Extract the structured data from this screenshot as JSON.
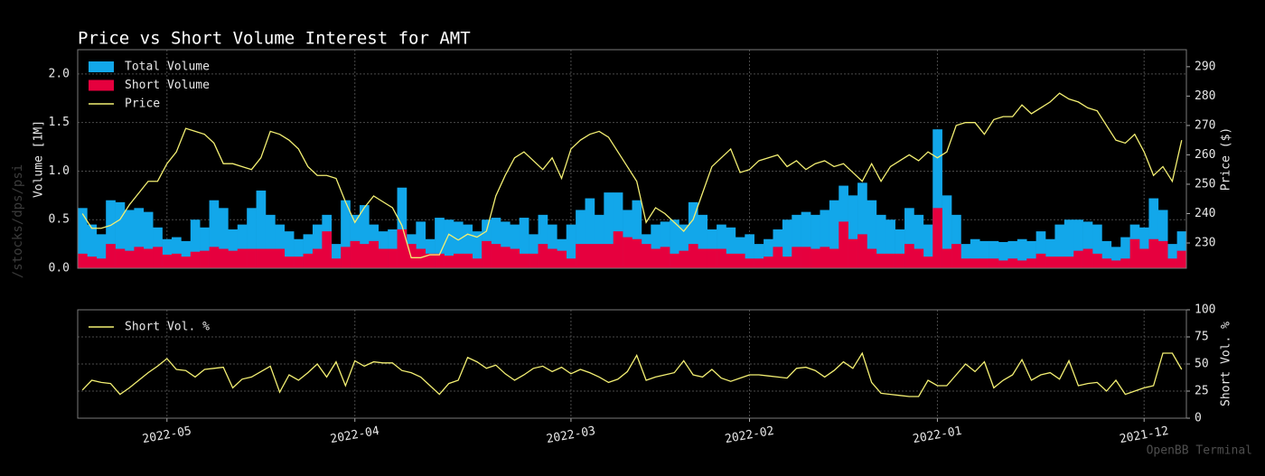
{
  "chart_data": [
    {
      "type": "bar",
      "title": "Price vs Short Volume Interest for AMT",
      "ylabel": "Volume [1M]",
      "y2label": "Price ($)",
      "ylim": [
        0,
        2.25
      ],
      "yticks": [
        {
          "value": 0,
          "label": "0.0"
        },
        {
          "value": 0.5,
          "label": "0.5"
        },
        {
          "value": 1,
          "label": "1.0"
        },
        {
          "value": 1.5,
          "label": "1.5"
        },
        {
          "value": 2,
          "label": "2.0"
        }
      ],
      "y2lim": [
        221.4,
        295.8
      ],
      "y2ticks": [
        230,
        240,
        250,
        260,
        270,
        280,
        290
      ],
      "grid": true,
      "legend": "upper left",
      "series": [
        {
          "name": "Total Volume",
          "color": "#12a7ea",
          "values": [
            0.62,
            0.45,
            0.35,
            0.7,
            0.68,
            0.6,
            0.62,
            0.58,
            0.42,
            0.3,
            0.32,
            0.28,
            0.5,
            0.42,
            0.7,
            0.62,
            0.4,
            0.45,
            0.62,
            0.8,
            0.55,
            0.45,
            0.38,
            0.3,
            0.35,
            0.45,
            0.55,
            0.25,
            0.7,
            0.55,
            0.65,
            0.45,
            0.38,
            0.4,
            0.83,
            0.35,
            0.48,
            0.3,
            0.52,
            0.5,
            0.48,
            0.45,
            0.38,
            0.5,
            0.52,
            0.48,
            0.45,
            0.52,
            0.35,
            0.55,
            0.45,
            0.3,
            0.45,
            0.6,
            0.72,
            0.55,
            0.78,
            0.78,
            0.6,
            0.7,
            0.35,
            0.45,
            0.48,
            0.5,
            0.45,
            0.68,
            0.55,
            0.4,
            0.45,
            0.42,
            0.32,
            0.35,
            0.25,
            0.3,
            0.4,
            0.5,
            0.55,
            0.58,
            0.55,
            0.6,
            0.7,
            0.85,
            0.75,
            0.88,
            0.7,
            0.55,
            0.5,
            0.4,
            0.62,
            0.55,
            0.45,
            1.43,
            0.75,
            0.55,
            0.25,
            0.3,
            0.28,
            0.28,
            0.27,
            0.28,
            0.3,
            0.28,
            0.38,
            0.3,
            0.45,
            0.5,
            0.5,
            0.48,
            0.45,
            0.28,
            0.22,
            0.32,
            0.45,
            0.42,
            0.72,
            0.6,
            0.25,
            0.38
          ]
        },
        {
          "name": "Short Volume",
          "color": "#e6003e",
          "values": [
            0.15,
            0.12,
            0.1,
            0.25,
            0.2,
            0.18,
            0.22,
            0.2,
            0.22,
            0.14,
            0.15,
            0.12,
            0.17,
            0.18,
            0.22,
            0.2,
            0.18,
            0.2,
            0.2,
            0.2,
            0.2,
            0.2,
            0.12,
            0.12,
            0.15,
            0.2,
            0.38,
            0.1,
            0.22,
            0.28,
            0.25,
            0.28,
            0.2,
            0.2,
            0.4,
            0.25,
            0.2,
            0.15,
            0.15,
            0.13,
            0.15,
            0.15,
            0.1,
            0.28,
            0.25,
            0.22,
            0.2,
            0.15,
            0.15,
            0.25,
            0.2,
            0.18,
            0.1,
            0.25,
            0.25,
            0.25,
            0.25,
            0.38,
            0.32,
            0.3,
            0.25,
            0.2,
            0.22,
            0.15,
            0.18,
            0.25,
            0.2,
            0.2,
            0.2,
            0.15,
            0.15,
            0.1,
            0.1,
            0.12,
            0.22,
            0.12,
            0.22,
            0.22,
            0.2,
            0.22,
            0.2,
            0.48,
            0.3,
            0.35,
            0.2,
            0.15,
            0.15,
            0.15,
            0.25,
            0.2,
            0.12,
            0.62,
            0.2,
            0.25,
            0.1,
            0.1,
            0.1,
            0.1,
            0.08,
            0.1,
            0.08,
            0.1,
            0.15,
            0.12,
            0.12,
            0.12,
            0.18,
            0.2,
            0.15,
            0.1,
            0.08,
            0.1,
            0.3,
            0.2,
            0.3,
            0.28,
            0.1,
            0.18
          ]
        },
        {
          "name": "Price",
          "color": "#f3ef72",
          "type": "line",
          "axis": "y2",
          "values": [
            240,
            235,
            235,
            236,
            238,
            243,
            247,
            251,
            251,
            257,
            261,
            269,
            268,
            267,
            264,
            257,
            257,
            256,
            255,
            259,
            268,
            267,
            265,
            262,
            256,
            253,
            253,
            252,
            244,
            237,
            242,
            246,
            244,
            242,
            236,
            225,
            225,
            226,
            226,
            233,
            231,
            233,
            232,
            234,
            246,
            253,
            259,
            261,
            258,
            255,
            259,
            252,
            262,
            265,
            267,
            268,
            266,
            261,
            256,
            251,
            237,
            242,
            240,
            237,
            234,
            238,
            247,
            256,
            259,
            262,
            254,
            255,
            258,
            259,
            260,
            256,
            258,
            255,
            257,
            258,
            256,
            257,
            254,
            251,
            257,
            251,
            256,
            258,
            260,
            258,
            261,
            259,
            261,
            270,
            271,
            271,
            267,
            272,
            273,
            273,
            277,
            274,
            276,
            278,
            281,
            279,
            278,
            276,
            275,
            270,
            265,
            264,
            267,
            261,
            253,
            256,
            251,
            265
          ]
        }
      ]
    },
    {
      "type": "line",
      "ylabel": "Short Vol. %",
      "ylim": [
        0,
        100
      ],
      "yticks": [
        0,
        25,
        50,
        75,
        100
      ],
      "grid": true,
      "legend": "upper left",
      "categories": [
        null,
        null,
        null,
        null,
        null,
        null,
        null,
        null,
        null,
        "2022-05",
        null,
        null,
        null,
        null,
        null,
        null,
        null,
        null,
        null,
        null,
        null,
        null,
        null,
        null,
        null,
        null,
        null,
        null,
        null,
        "2022-04",
        null,
        null,
        null,
        null,
        null,
        null,
        null,
        null,
        null,
        null,
        null,
        null,
        null,
        null,
        null,
        null,
        null,
        null,
        null,
        null,
        null,
        null,
        "2022-03",
        null,
        null,
        null,
        null,
        null,
        null,
        null,
        null,
        null,
        null,
        null,
        null,
        null,
        null,
        null,
        null,
        null,
        null,
        "2022-02",
        null,
        null,
        null,
        null,
        null,
        null,
        null,
        null,
        null,
        null,
        null,
        null,
        null,
        null,
        null,
        null,
        null,
        null,
        null,
        "2022-01",
        null,
        null,
        null,
        null,
        null,
        null,
        null,
        null,
        null,
        null,
        null,
        null,
        null,
        null,
        null,
        null,
        null,
        null,
        null,
        null,
        null,
        "2021-12",
        null,
        null,
        null,
        null
      ],
      "series": [
        {
          "name": "Short Vol. %",
          "color": "#f3ef72",
          "values": [
            26,
            35,
            33,
            32,
            22,
            28,
            35,
            42,
            48,
            55,
            45,
            44,
            38,
            45,
            46,
            47,
            28,
            36,
            38,
            43,
            48,
            24,
            40,
            35,
            42,
            50,
            38,
            52,
            30,
            53,
            48,
            52,
            51,
            51,
            44,
            42,
            38,
            30,
            22,
            32,
            35,
            56,
            52,
            46,
            49,
            41,
            35,
            40,
            46,
            48,
            43,
            47,
            41,
            45,
            42,
            38,
            33,
            36,
            43,
            58,
            35,
            38,
            40,
            42,
            53,
            40,
            38,
            45,
            37,
            34,
            37,
            40,
            40,
            39,
            38,
            37,
            46,
            47,
            44,
            38,
            44,
            52,
            46,
            60,
            33,
            23,
            22,
            21,
            20,
            20,
            35,
            30,
            30,
            40,
            50,
            43,
            52,
            28,
            35,
            40,
            54,
            35,
            40,
            42,
            36,
            53,
            30,
            32,
            33,
            25,
            35,
            22,
            25,
            28,
            30,
            60,
            60,
            45
          ]
        }
      ]
    }
  ],
  "watermarks": {
    "command": "/stocks/dps/psi",
    "brand": "OpenBB Terminal"
  }
}
